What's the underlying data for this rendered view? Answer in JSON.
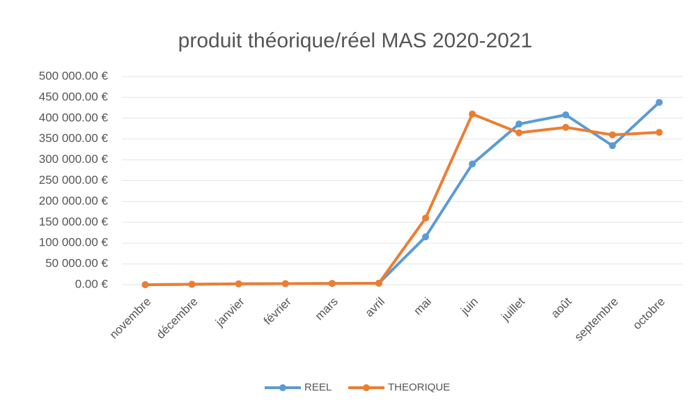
{
  "chart_data": {
    "type": "line",
    "title": "produit théorique/réel MAS 2020-2021",
    "categories": [
      "novembre",
      "décembre",
      "janvier",
      "février",
      "mars",
      "avril",
      "mai",
      "juin",
      "juillet",
      "août",
      "septembre",
      "octobre"
    ],
    "series": [
      {
        "name": "REEL",
        "color": "#5b9bd5",
        "values": [
          0,
          1000,
          2000,
          2500,
          3000,
          3500,
          115000,
          290000,
          386000,
          408000,
          334000,
          438000
        ]
      },
      {
        "name": "THEORIQUE",
        "color": "#ed7d31",
        "values": [
          0,
          1000,
          2000,
          2500,
          3000,
          3500,
          160000,
          410000,
          365000,
          378000,
          360000,
          366000
        ]
      }
    ],
    "ylim": [
      0,
      500000
    ],
    "yticks": [
      {
        "value": 0,
        "label": "0.00 €"
      },
      {
        "value": 50000,
        "label": "50 000.00 €"
      },
      {
        "value": 100000,
        "label": "100 000.00 €"
      },
      {
        "value": 150000,
        "label": "150 000.00 €"
      },
      {
        "value": 200000,
        "label": "200 000.00 €"
      },
      {
        "value": 250000,
        "label": "250 000.00 €"
      },
      {
        "value": 300000,
        "label": "300 000.00 €"
      },
      {
        "value": 350000,
        "label": "350 000.00 €"
      },
      {
        "value": 400000,
        "label": "400 000.00 €"
      },
      {
        "value": 450000,
        "label": "450 000.00 €"
      },
      {
        "value": 500000,
        "label": "500 000.00 €"
      }
    ],
    "grid": true
  }
}
